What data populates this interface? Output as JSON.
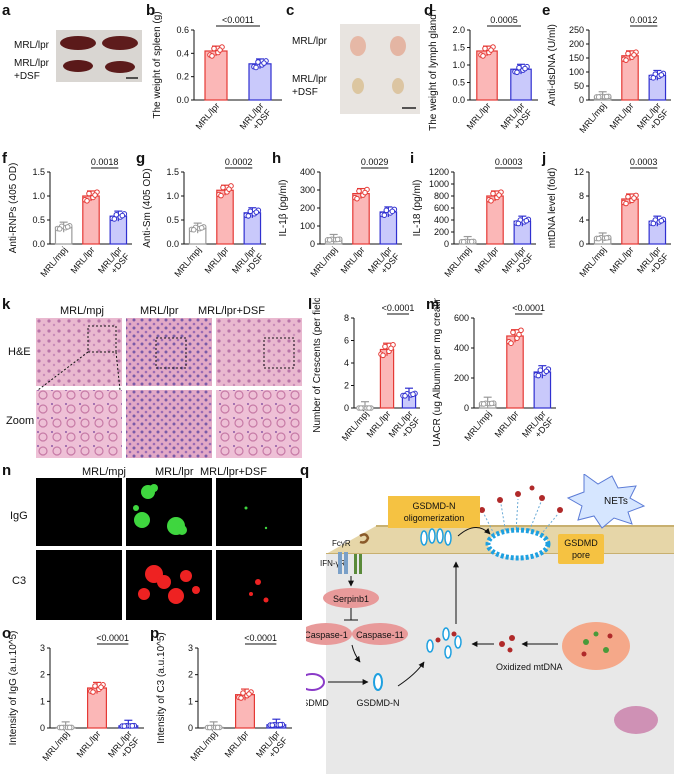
{
  "panel_letters": [
    "a",
    "b",
    "c",
    "d",
    "e",
    "f",
    "g",
    "h",
    "i",
    "j",
    "k",
    "l",
    "m",
    "n",
    "o",
    "p",
    "q"
  ],
  "panel_a": {
    "row1": "MRL/lpr",
    "row2a": "MRL/lpr",
    "row2b": "+DSF"
  },
  "panel_c": {
    "row1": "MRL/lpr",
    "row2a": "MRL/lpr",
    "row2b": "+DSF"
  },
  "panel_k": {
    "cols": [
      "MRL/mpj",
      "MRL/lpr",
      "MRL/lpr+DSF"
    ],
    "rows": [
      "H&E",
      "Zoom"
    ]
  },
  "panel_n": {
    "cols": [
      "MRL/mpj",
      "MRL/lpr",
      "MRL/lpr+DSF"
    ],
    "rows": [
      "IgG",
      "C3"
    ]
  },
  "colors": {
    "grey": "#9a9a9a",
    "red": "#f08080",
    "red_dark": "#e53935",
    "blue": "#8f8ff0",
    "blue_dark": "#3030d0"
  },
  "chart_data": [
    {
      "id": "b",
      "type": "bar",
      "ylabel": "The weight of spleen (g)",
      "categories": [
        "MRL/lpr",
        "MRL/lpr +DSF"
      ],
      "values": [
        0.42,
        0.31
      ],
      "ylim": [
        0,
        0.6
      ],
      "yticks": [
        "0.0",
        "0.2",
        "0.4",
        "0.6"
      ],
      "pvalues": [
        "<0.0011"
      ]
    },
    {
      "id": "d",
      "type": "bar",
      "ylabel": "The weight of lymph gland (g)",
      "categories": [
        "MRL/lpr",
        "MRL/lpr +DSF"
      ],
      "values": [
        1.4,
        0.88
      ],
      "ylim": [
        0,
        2.0
      ],
      "yticks": [
        "0.0",
        "0.5",
        "1.0",
        "1.5",
        "2.0"
      ],
      "pvalues": [
        "0.0005"
      ]
    },
    {
      "id": "e",
      "type": "bar",
      "ylabel": "Anti-dsDNA (U/ml)",
      "categories": [
        "MRL/mpj",
        "MRL/lpr",
        "MRL/lpr +DSF"
      ],
      "values": [
        12,
        158,
        88
      ],
      "ylim": [
        0,
        250
      ],
      "yticks": [
        "0",
        "50",
        "100",
        "150",
        "200",
        "250"
      ],
      "pvalues": [
        "0.0012"
      ]
    },
    {
      "id": "f",
      "type": "bar",
      "ylabel": "Anti-RNPs (405 OD)",
      "categories": [
        "MRL/mpj",
        "MRL/lpr",
        "MRL/lpr +DSF"
      ],
      "values": [
        0.35,
        1.0,
        0.58
      ],
      "ylim": [
        0,
        1.5
      ],
      "yticks": [
        "0.0",
        "0.5",
        "1.0",
        "1.5"
      ],
      "pvalues": [
        "0.0018"
      ]
    },
    {
      "id": "g",
      "type": "bar",
      "ylabel": "Anti-Sm (405 OD)",
      "categories": [
        "MRL/mpj",
        "MRL/lpr",
        "MRL/lpr +DSF"
      ],
      "values": [
        0.33,
        1.12,
        0.65
      ],
      "ylim": [
        0,
        1.5
      ],
      "yticks": [
        "0.0",
        "0.5",
        "1.0",
        "1.5"
      ],
      "pvalues": [
        "0.0002"
      ]
    },
    {
      "id": "h",
      "type": "bar",
      "ylabel": "IL-1β (pg/ml)",
      "categories": [
        "MRL/mpj",
        "MRL/lpr",
        "MRL/lpr +DSF"
      ],
      "values": [
        25,
        280,
        178
      ],
      "ylim": [
        0,
        400
      ],
      "yticks": [
        "0",
        "100",
        "200",
        "300",
        "400"
      ],
      "pvalues": [
        "0.0029"
      ]
    },
    {
      "id": "i",
      "type": "bar",
      "ylabel": "IL-18 (pg/ml)",
      "categories": [
        "MRL/mpj",
        "MRL/lpr",
        "MRL/lpr +DSF"
      ],
      "values": [
        40,
        800,
        380
      ],
      "ylim": [
        0,
        1200
      ],
      "yticks": [
        "0",
        "200",
        "400",
        "600",
        "800",
        "1000",
        "1200"
      ],
      "pvalues": [
        "0.0003"
      ]
    },
    {
      "id": "j",
      "type": "bar",
      "ylabel": "mtDNA level (fold)",
      "categories": [
        "MRL/mpj",
        "MRL/lpr",
        "MRL/lpr +DSF"
      ],
      "values": [
        1.0,
        7.5,
        3.8
      ],
      "ylim": [
        0,
        12
      ],
      "yticks": [
        "0",
        "4",
        "8",
        "12"
      ],
      "pvalues": [
        "0.0003"
      ]
    },
    {
      "id": "l",
      "type": "bar",
      "ylabel": "Number of Crescents (per field)",
      "categories": [
        "MRL/mpj",
        "MRL/lpr",
        "MRL/lpr +DSF"
      ],
      "values": [
        0.0,
        5.2,
        1.2
      ],
      "ylim": [
        0,
        8
      ],
      "yticks": [
        "0",
        "2",
        "4",
        "6",
        "8"
      ],
      "pvalues": [
        "<0.0001"
      ]
    },
    {
      "id": "m",
      "type": "bar",
      "ylabel": "UACR (ug Albumin per mg creatinine)",
      "categories": [
        "MRL/mpj",
        "MRL/lpr",
        "MRL/lpr +DSF"
      ],
      "values": [
        30,
        480,
        240
      ],
      "ylim": [
        0,
        600
      ],
      "yticks": [
        "0",
        "200",
        "400",
        "600"
      ],
      "pvalues": [
        "<0.0001"
      ]
    },
    {
      "id": "o",
      "type": "bar",
      "ylabel": "Intensity of IgG (a.u.10^5)",
      "categories": [
        "MRL/mpj",
        "MRL/lpr",
        "MRL/lpr +DSF"
      ],
      "values": [
        0.02,
        1.5,
        0.08
      ],
      "ylim": [
        0,
        3
      ],
      "yticks": [
        "0",
        "1",
        "2",
        "3"
      ],
      "pvalues": [
        "<0.0001"
      ]
    },
    {
      "id": "p",
      "type": "bar",
      "ylabel": "Intensity of C3 (a.u.10^5)",
      "categories": [
        "MRL/mpj",
        "MRL/lpr",
        "MRL/lpr +DSF"
      ],
      "values": [
        0.02,
        1.25,
        0.12
      ],
      "ylim": [
        0,
        3
      ],
      "yticks": [
        "0",
        "1",
        "2",
        "3"
      ],
      "pvalues": [
        "<0.0001"
      ]
    }
  ],
  "diagram_q": {
    "nets": "NETs",
    "gsdmdn_olig_1": "GSDMD-N",
    "gsdmdn_olig_2": "oligomerization",
    "pore_1": "GSDMD",
    "pore_2": "pore",
    "fcyr": "FcγR",
    "ifngr": "IFN-γR",
    "serpinb1": "Serpinb1",
    "casp1": "Caspase-1",
    "casp11": "Caspase-11",
    "gsdmd": "GSDMD",
    "gsdmdn": "GSDMD-N",
    "oxmtdna": "Oxidized mtDNA"
  }
}
